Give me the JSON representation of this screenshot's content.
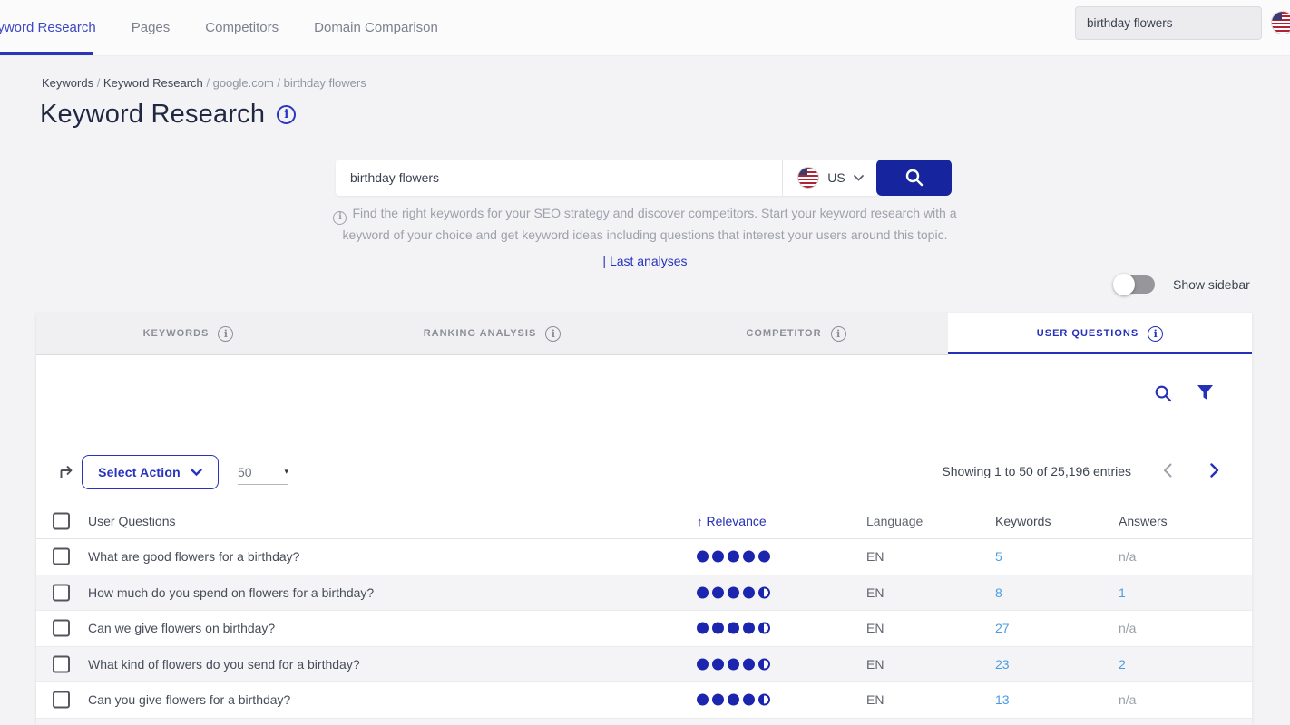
{
  "colors": {
    "accent": "#2430b8",
    "search_button": "#16259d",
    "relevance_dot": "#1c25ae",
    "number_link": "#4a9ce2",
    "alt_row": "#f4f4f6"
  },
  "topnav": {
    "items": [
      {
        "label": "Keyword Research",
        "active": true
      },
      {
        "label": "Pages",
        "active": false
      },
      {
        "label": "Competitors",
        "active": false
      },
      {
        "label": "Domain Comparison",
        "active": false
      }
    ],
    "search_value": "birthday flowers"
  },
  "breadcrumb": {
    "separator": "/",
    "items": [
      {
        "label": "Keywords",
        "muted": false
      },
      {
        "label": "Keyword Research",
        "muted": false
      },
      {
        "label": "google.com",
        "muted": true
      },
      {
        "label": "birthday flowers",
        "muted": true
      }
    ]
  },
  "page": {
    "title": "Keyword Research"
  },
  "hero": {
    "search_value": "birthday flowers",
    "country_code": "US",
    "description_line1": "Find the right keywords for your SEO strategy and discover competitors. Start your keyword research with a",
    "description_line2": "keyword of your choice and get keyword ideas including questions that interest your users around this topic.",
    "last_analyses_label": "| Last analyses",
    "show_sidebar_label": "Show sidebar",
    "sidebar_toggle_on": false
  },
  "tabs": [
    {
      "label": "KEYWORDS",
      "active": false
    },
    {
      "label": "RANKING ANALYSIS",
      "active": false
    },
    {
      "label": "COMPETITOR",
      "active": false
    },
    {
      "label": "USER QUESTIONS",
      "active": true
    }
  ],
  "toolbar": {
    "select_action_label": "Select Action",
    "page_size": "50",
    "showing_text": "Showing 1 to 50 of 25,196 entries"
  },
  "table": {
    "headers": {
      "question": "User Questions",
      "relevance": "Relevance",
      "language": "Language",
      "keywords": "Keywords",
      "answers": "Answers"
    },
    "sort": {
      "column": "Relevance",
      "direction": "asc",
      "arrow": "↑"
    },
    "rows": [
      {
        "question": "What are good flowers for a birthday?",
        "relevance": 5,
        "language": "EN",
        "keywords": "5",
        "answers": "n/a",
        "checked": false
      },
      {
        "question": "How much do you spend on flowers for a birthday?",
        "relevance": 4.5,
        "language": "EN",
        "keywords": "8",
        "answers": "1",
        "checked": false
      },
      {
        "question": "Can we give flowers on birthday?",
        "relevance": 4.5,
        "language": "EN",
        "keywords": "27",
        "answers": "n/a",
        "checked": false
      },
      {
        "question": "What kind of flowers do you send for a birthday?",
        "relevance": 4.5,
        "language": "EN",
        "keywords": "23",
        "answers": "2",
        "checked": false
      },
      {
        "question": "Can you give flowers for a birthday?",
        "relevance": 4.5,
        "language": "EN",
        "keywords": "13",
        "answers": "n/a",
        "checked": false
      }
    ]
  }
}
